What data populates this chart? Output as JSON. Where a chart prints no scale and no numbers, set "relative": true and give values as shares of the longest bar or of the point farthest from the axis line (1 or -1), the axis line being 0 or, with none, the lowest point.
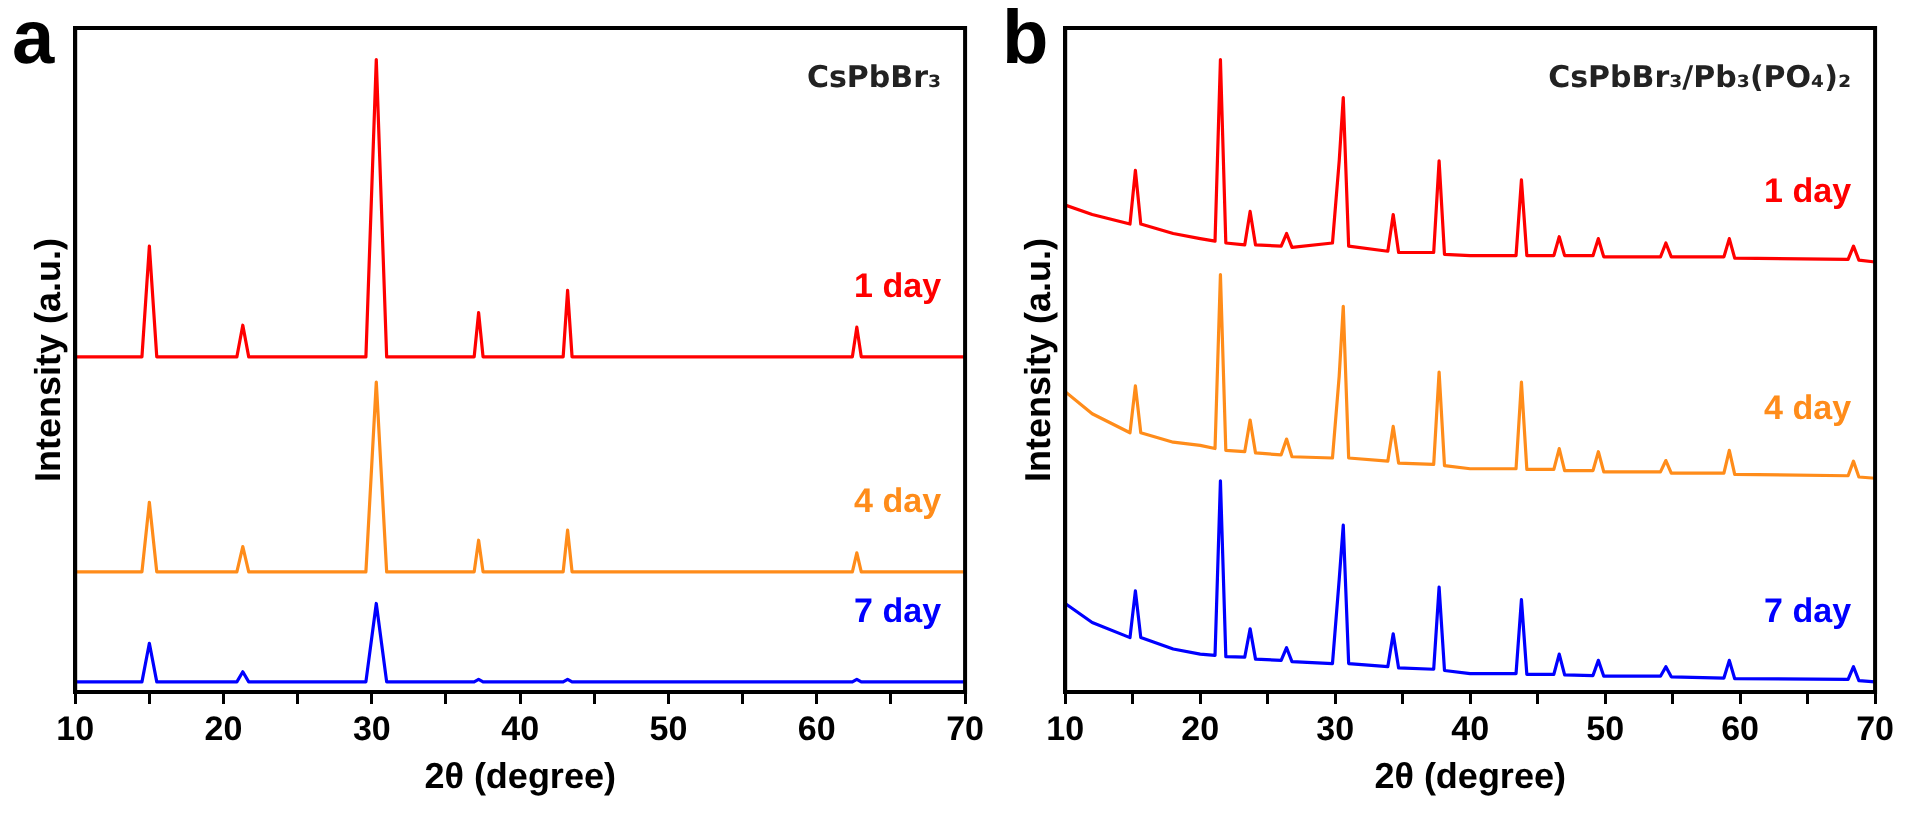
{
  "chart_data": [
    {
      "type": "line",
      "title": "CsPbBr₃",
      "annotations": [
        "a"
      ],
      "xlabel": "2θ (degree)",
      "ylabel": "Intensity (a.u.)",
      "relative": true,
      "legend": false,
      "grid": false,
      "marker": "none",
      "line_style": "solid",
      "xlim": [
        10,
        70
      ],
      "xticks": [
        10,
        {
          "value": 15,
          "label": null
        },
        20,
        {
          "value": 25,
          "label": null
        },
        30,
        {
          "value": 35,
          "label": null
        },
        40,
        {
          "value": 45,
          "label": null
        },
        50,
        {
          "value": 55,
          "label": null
        },
        60,
        {
          "value": 65,
          "label": null
        },
        70
      ],
      "x": [
        10,
        14.5,
        15,
        15.5,
        20.9,
        21.3,
        21.7,
        29.6,
        30.3,
        31,
        36.9,
        37.2,
        37.5,
        42.9,
        43.2,
        43.5,
        62.4,
        62.7,
        63,
        70
      ],
      "series": [
        {
          "name": "1 day",
          "color": "#ff0000",
          "values": [
            0.53,
            0.53,
            0.705,
            0.53,
            0.53,
            0.58,
            0.53,
            0.53,
            1,
            0.53,
            0.53,
            0.6,
            0.53,
            0.53,
            0.635,
            0.53,
            0.53,
            0.577,
            0.53,
            0.53
          ]
        },
        {
          "name": "4 day",
          "color": "#ff8c1a",
          "values": [
            0.19,
            0.19,
            0.3,
            0.19,
            0.19,
            0.23,
            0.19,
            0.19,
            0.49,
            0.19,
            0.19,
            0.24,
            0.19,
            0.19,
            0.256,
            0.19,
            0.19,
            0.22,
            0.19,
            0.19
          ]
        },
        {
          "name": "7 day",
          "color": "#0000ff",
          "values": [
            0.016,
            0.016,
            0.077,
            0.016,
            0.016,
            0.032,
            0.016,
            0.016,
            0.14,
            0.016,
            0.016,
            0.02,
            0.016,
            0.016,
            0.02,
            0.016,
            0.016,
            0.02,
            0.016,
            0.016
          ]
        }
      ]
    },
    {
      "type": "line",
      "title": "CsPbBr₃/Pb₃(PO₄)₂",
      "annotations": [
        "b"
      ],
      "xlabel": "2θ (degree)",
      "ylabel": "Intensity (a.u.)",
      "relative": true,
      "legend": false,
      "grid": false,
      "marker": "none",
      "line_style": "solid",
      "xlim": [
        10,
        70
      ],
      "xticks": [
        10,
        {
          "value": 15,
          "label": null
        },
        20,
        {
          "value": 25,
          "label": null
        },
        30,
        {
          "value": 35,
          "label": null
        },
        40,
        {
          "value": 45,
          "label": null
        },
        50,
        {
          "value": 55,
          "label": null
        },
        60,
        {
          "value": 65,
          "label": null
        },
        70
      ],
      "x": [
        10,
        12,
        14.8,
        15.2,
        15.6,
        18,
        20,
        21.1,
        21.5,
        21.9,
        23.3,
        23.7,
        24.1,
        26,
        26.4,
        26.8,
        29.8,
        30.3,
        30.6,
        31,
        33.9,
        34.3,
        34.7,
        37.3,
        37.7,
        38.1,
        40,
        43.4,
        43.8,
        44.2,
        46.2,
        46.6,
        47,
        49.1,
        49.5,
        49.9,
        54.1,
        54.5,
        54.9,
        58.8,
        59.2,
        59.6,
        68,
        68.4,
        68.8,
        70
      ],
      "series": [
        {
          "name": "1 day",
          "color": "#ff0000",
          "values": [
            0.77,
            0.755,
            0.74,
            0.825,
            0.74,
            0.725,
            0.717,
            0.713,
            1,
            0.71,
            0.707,
            0.76,
            0.707,
            0.705,
            0.725,
            0.703,
            0.71,
            0.84,
            0.94,
            0.705,
            0.697,
            0.755,
            0.695,
            0.695,
            0.84,
            0.692,
            0.69,
            0.69,
            0.81,
            0.69,
            0.69,
            0.72,
            0.69,
            0.69,
            0.717,
            0.688,
            0.688,
            0.71,
            0.688,
            0.688,
            0.717,
            0.686,
            0.684,
            0.705,
            0.683,
            0.68
          ]
        },
        {
          "name": "4 day",
          "color": "#ff8c1a",
          "values": [
            0.475,
            0.44,
            0.41,
            0.484,
            0.41,
            0.395,
            0.39,
            0.385,
            0.66,
            0.382,
            0.38,
            0.43,
            0.378,
            0.375,
            0.4,
            0.372,
            0.37,
            0.5,
            0.61,
            0.37,
            0.365,
            0.42,
            0.362,
            0.36,
            0.506,
            0.358,
            0.353,
            0.353,
            0.49,
            0.352,
            0.352,
            0.385,
            0.35,
            0.35,
            0.38,
            0.348,
            0.348,
            0.366,
            0.346,
            0.346,
            0.382,
            0.344,
            0.342,
            0.365,
            0.34,
            0.338
          ]
        },
        {
          "name": "7 day",
          "color": "#0000ff",
          "values": [
            0.14,
            0.11,
            0.086,
            0.16,
            0.086,
            0.068,
            0.06,
            0.058,
            0.334,
            0.056,
            0.055,
            0.1,
            0.052,
            0.05,
            0.07,
            0.048,
            0.045,
            0.178,
            0.264,
            0.045,
            0.04,
            0.092,
            0.038,
            0.036,
            0.166,
            0.034,
            0.029,
            0.029,
            0.146,
            0.028,
            0.028,
            0.06,
            0.027,
            0.026,
            0.05,
            0.025,
            0.025,
            0.04,
            0.024,
            0.022,
            0.05,
            0.021,
            0.02,
            0.04,
            0.018,
            0.016
          ]
        }
      ]
    }
  ]
}
